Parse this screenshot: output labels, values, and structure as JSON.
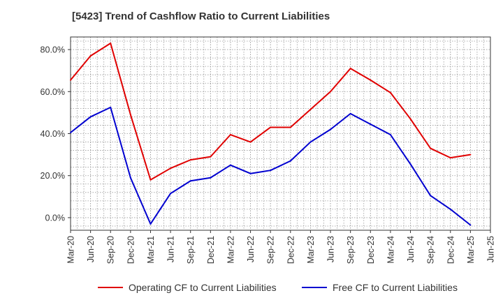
{
  "title": "[5423]  Trend of Cashflow Ratio to Current Liabilities",
  "colors": {
    "operating": "#e00000",
    "free": "#0000d0",
    "grid": "#999999",
    "axis": "#333333"
  },
  "chart_data": {
    "type": "line",
    "title": "[5423]  Trend of Cashflow Ratio to Current Liabilities",
    "xlabel": "",
    "ylabel": "",
    "categories": [
      "Mar-20",
      "Jun-20",
      "Sep-20",
      "Dec-20",
      "Mar-21",
      "Jun-21",
      "Sep-21",
      "Dec-21",
      "Mar-22",
      "Jun-22",
      "Sep-22",
      "Dec-22",
      "Mar-23",
      "Jun-23",
      "Sep-23",
      "Dec-23",
      "Mar-24",
      "Jun-24",
      "Sep-24",
      "Dec-24",
      "Mar-25",
      "Jun-25"
    ],
    "x_tick_labels": [
      "Mar-20",
      "Jun-20",
      "Sep-20",
      "Dec-20",
      "Mar-21",
      "Jun-21",
      "Sep-21",
      "Dec-21",
      "Mar-22",
      "Jun-22",
      "Sep-22",
      "Dec-22",
      "Mar-23",
      "Jun-23",
      "Sep-23",
      "Dec-23",
      "Mar-24",
      "Jun-24",
      "Sep-24",
      "Dec-24",
      "Mar-25",
      "Jun-25"
    ],
    "y_ticks": [
      0,
      20,
      40,
      60,
      80
    ],
    "y_tick_labels": [
      "0.0%",
      "20.0%",
      "40.0%",
      "60.0%",
      "80.0%"
    ],
    "ylim": [
      -6,
      86
    ],
    "grid": true,
    "legend_position": "bottom",
    "series": [
      {
        "name": "Operating CF to Current Liabilities",
        "color": "#e00000",
        "values": [
          65.5,
          77,
          83,
          49,
          18,
          23.5,
          27.5,
          29,
          39.5,
          36,
          43,
          43,
          51.5,
          60,
          71,
          65.5,
          59.5,
          47,
          33,
          28.5,
          30,
          null
        ]
      },
      {
        "name": "Free CF to Current Liabilities",
        "color": "#0000d0",
        "values": [
          40.5,
          48,
          52.5,
          19,
          -3,
          11.5,
          17.5,
          19,
          25,
          21,
          22.5,
          27,
          36,
          42,
          49.5,
          44.5,
          39.5,
          25.5,
          10.5,
          4,
          -3.5,
          null
        ]
      }
    ]
  }
}
